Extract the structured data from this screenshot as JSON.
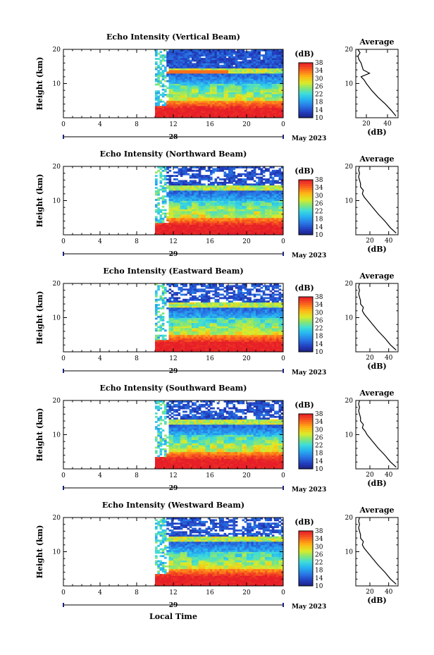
{
  "chart_data": [
    {
      "type": "heatmap",
      "title": "Echo Intensity (Vertical Beam)",
      "ylabel": "Height (km)",
      "xlabel": "",
      "x_ticks": [
        "0",
        "4",
        "8",
        "12",
        "16",
        "20",
        "0"
      ],
      "xlim": [
        0,
        24
      ],
      "y_ticks": [
        "10",
        "20"
      ],
      "ylim": [
        0,
        20
      ],
      "date_label": "28",
      "month_label": "May 2023",
      "colorbar": {
        "label": "(dB)",
        "ticks": [
          "10",
          "14",
          "18",
          "22",
          "26",
          "30",
          "34",
          "38"
        ],
        "range": [
          10,
          38
        ]
      },
      "data_start_hour": 10,
      "avg_profile": {
        "title": "Average",
        "xlabel": "(dB)",
        "x_ticks": [
          "20",
          "40"
        ],
        "xlim": [
          10,
          50
        ],
        "y_ticks": [
          "10",
          "20"
        ],
        "heights_km": [
          0.5,
          2,
          4,
          6,
          8,
          10,
          11,
          12,
          13,
          14,
          15,
          16,
          17,
          18,
          19,
          20
        ],
        "values_db": [
          48,
          44,
          38,
          31,
          25,
          20,
          18,
          15,
          23,
          17,
          16,
          15,
          13,
          12,
          14,
          12
        ]
      }
    },
    {
      "type": "heatmap",
      "title": "Echo Intensity (Northward Beam)",
      "ylabel": "Height (km)",
      "xlabel": "",
      "x_ticks": [
        "0",
        "4",
        "8",
        "12",
        "16",
        "20",
        "0"
      ],
      "xlim": [
        0,
        24
      ],
      "y_ticks": [
        "10",
        "20"
      ],
      "ylim": [
        0,
        20
      ],
      "date_label": "29",
      "month_label": "May 2023",
      "colorbar": {
        "label": "(dB)",
        "ticks": [
          "10",
          "14",
          "18",
          "22",
          "26",
          "30",
          "34",
          "38"
        ],
        "range": [
          10,
          38
        ]
      },
      "data_start_hour": 10,
      "avg_profile": {
        "title": "Average",
        "xlabel": "(dB)",
        "x_ticks": [
          "20",
          "40"
        ],
        "xlim": [
          5,
          50
        ],
        "y_ticks": [
          "10",
          "20"
        ],
        "heights_km": [
          0.5,
          2,
          4,
          6,
          8,
          10,
          11,
          12,
          13,
          14,
          15,
          16,
          17,
          18,
          19,
          20
        ],
        "values_db": [
          48,
          42,
          36,
          29,
          23,
          17,
          14,
          12,
          13,
          10,
          10,
          9,
          8,
          9,
          8,
          9
        ]
      }
    },
    {
      "type": "heatmap",
      "title": "Echo Intensity (Eastward Beam)",
      "ylabel": "Height (km)",
      "xlabel": "",
      "x_ticks": [
        "0",
        "4",
        "8",
        "12",
        "16",
        "20",
        "0"
      ],
      "xlim": [
        0,
        24
      ],
      "y_ticks": [
        "10",
        "20"
      ],
      "ylim": [
        0,
        20
      ],
      "date_label": "29",
      "month_label": "May 2023",
      "colorbar": {
        "label": "(dB)",
        "ticks": [
          "10",
          "14",
          "18",
          "22",
          "26",
          "30",
          "34",
          "38"
        ],
        "range": [
          10,
          38
        ]
      },
      "data_start_hour": 10,
      "avg_profile": {
        "title": "Average",
        "xlabel": "(dB)",
        "x_ticks": [
          "20",
          "40"
        ],
        "xlim": [
          5,
          50
        ],
        "y_ticks": [
          "10",
          "20"
        ],
        "heights_km": [
          0.5,
          2,
          4,
          6,
          8,
          10,
          11,
          12,
          13,
          14,
          15,
          16,
          17,
          18,
          19,
          20
        ],
        "values_db": [
          48,
          42,
          36,
          29,
          23,
          17,
          14,
          12,
          13,
          10,
          10,
          9,
          8,
          9,
          8,
          9
        ]
      }
    },
    {
      "type": "heatmap",
      "title": "Echo Intensity (Southward Beam)",
      "ylabel": "Height (km)",
      "xlabel": "",
      "x_ticks": [
        "0",
        "4",
        "8",
        "12",
        "16",
        "20",
        "0"
      ],
      "xlim": [
        0,
        24
      ],
      "y_ticks": [
        "10",
        "20"
      ],
      "ylim": [
        0,
        20
      ],
      "date_label": "29",
      "month_label": "May 2023",
      "colorbar": {
        "label": "(dB)",
        "ticks": [
          "10",
          "14",
          "18",
          "22",
          "26",
          "30",
          "34",
          "38"
        ],
        "range": [
          10,
          38
        ]
      },
      "data_start_hour": 10,
      "avg_profile": {
        "title": "Average",
        "xlabel": "(dB)",
        "x_ticks": [
          "20",
          "40"
        ],
        "xlim": [
          5,
          50
        ],
        "y_ticks": [
          "10",
          "20"
        ],
        "heights_km": [
          0.5,
          2,
          4,
          6,
          8,
          10,
          11,
          12,
          13,
          14,
          15,
          16,
          17,
          18,
          19,
          20
        ],
        "values_db": [
          48,
          42,
          36,
          29,
          23,
          17,
          15,
          12,
          13,
          10,
          10,
          9,
          8,
          9,
          8,
          9
        ]
      }
    },
    {
      "type": "heatmap",
      "title": "Echo Intensity (Westward Beam)",
      "ylabel": "Height (km)",
      "xlabel": "Local Time",
      "x_ticks": [
        "0",
        "4",
        "8",
        "12",
        "16",
        "20",
        "0"
      ],
      "xlim": [
        0,
        24
      ],
      "y_ticks": [
        "10",
        "20"
      ],
      "ylim": [
        0,
        20
      ],
      "date_label": "29",
      "month_label": "May 2023",
      "colorbar": {
        "label": "(dB)",
        "ticks": [
          "10",
          "14",
          "18",
          "22",
          "26",
          "30",
          "34",
          "38"
        ],
        "range": [
          10,
          38
        ]
      },
      "data_start_hour": 10,
      "avg_profile": {
        "title": "Average",
        "xlabel": "(dB)",
        "x_ticks": [
          "20",
          "40"
        ],
        "xlim": [
          5,
          50
        ],
        "y_ticks": [
          "10",
          "20"
        ],
        "heights_km": [
          0.5,
          2,
          4,
          6,
          8,
          10,
          11,
          12,
          13,
          14,
          15,
          16,
          17,
          18,
          19,
          20
        ],
        "values_db": [
          48,
          42,
          36,
          29,
          23,
          17,
          14,
          12,
          13,
          10,
          10,
          9,
          8,
          9,
          8,
          9
        ]
      }
    }
  ]
}
